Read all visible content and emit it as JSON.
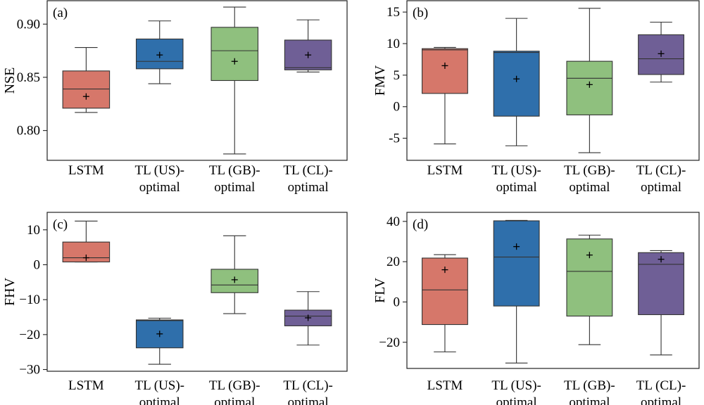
{
  "colors": {
    "LSTM": "#d6776a",
    "TL (US)-optimal": "#2f6fab",
    "TL (GB)-optimal": "#8fc07e",
    "TL (CL)-optimal": "#6f5f96"
  },
  "chart_data": [
    {
      "type": "box",
      "panel_tag": "(a)",
      "ylabel": "NSE",
      "ylim": [
        0.772,
        0.922
      ],
      "yticks": [
        0.8,
        0.85,
        0.9
      ],
      "ytick_labels": [
        "0.80",
        "0.85",
        "0.90"
      ],
      "categories": [
        [
          "LSTM"
        ],
        [
          "TL (US)-",
          "optimal"
        ],
        [
          "TL (GB)-",
          "optimal"
        ],
        [
          "TL (CL)-",
          "optimal"
        ]
      ],
      "series_keys": [
        "LSTM",
        "TL (US)-optimal",
        "TL (GB)-optimal",
        "TL (CL)-optimal"
      ],
      "boxes": [
        {
          "min": 0.817,
          "q1": 0.821,
          "median": 0.839,
          "q3": 0.856,
          "max": 0.878,
          "mean": 0.832
        },
        {
          "min": 0.844,
          "q1": 0.858,
          "median": 0.865,
          "q3": 0.886,
          "max": 0.903,
          "mean": 0.871
        },
        {
          "min": 0.778,
          "q1": 0.847,
          "median": 0.875,
          "q3": 0.897,
          "max": 0.916,
          "mean": 0.865
        },
        {
          "min": 0.855,
          "q1": 0.857,
          "median": 0.859,
          "q3": 0.885,
          "max": 0.904,
          "mean": 0.871
        }
      ]
    },
    {
      "type": "box",
      "panel_tag": "(b)",
      "ylabel": "FMV",
      "ylim": [
        -8.5,
        16.8
      ],
      "yticks": [
        -5,
        0,
        5,
        10,
        15
      ],
      "ytick_labels": [
        "-5",
        "0",
        "5",
        "10",
        "15"
      ],
      "categories": [
        [
          "LSTM"
        ],
        [
          "TL (US)-",
          "optimal"
        ],
        [
          "TL (GB)-",
          "optimal"
        ],
        [
          "TL (CL)-",
          "optimal"
        ]
      ],
      "series_keys": [
        "LSTM",
        "TL (US)-optimal",
        "TL (GB)-optimal",
        "TL (CL)-optimal"
      ],
      "boxes": [
        {
          "min": -5.9,
          "q1": 2.1,
          "median": 9.0,
          "q3": 9.2,
          "max": 9.4,
          "mean": 6.5
        },
        {
          "min": -6.2,
          "q1": -1.5,
          "median": 8.6,
          "q3": 8.8,
          "max": 14.0,
          "mean": 4.4
        },
        {
          "min": -7.3,
          "q1": -1.3,
          "median": 4.5,
          "q3": 7.2,
          "max": 15.6,
          "mean": 3.5
        },
        {
          "min": 3.9,
          "q1": 5.1,
          "median": 7.6,
          "q3": 11.4,
          "max": 13.4,
          "mean": 8.4
        }
      ]
    },
    {
      "type": "box",
      "panel_tag": "(c)",
      "ylabel": "FHV",
      "ylim": [
        -30.5,
        15.0
      ],
      "yticks": [
        -30,
        -20,
        -10,
        0,
        10
      ],
      "ytick_labels": [
        "−30",
        "−20",
        "−10",
        "0",
        "10"
      ],
      "categories": [
        [
          "LSTM"
        ],
        [
          "TL (US)-",
          "optimal"
        ],
        [
          "TL (GB)-",
          "optimal"
        ],
        [
          "TL (CL)-",
          "optimal"
        ]
      ],
      "series_keys": [
        "LSTM",
        "TL (US)-optimal",
        "TL (GB)-optimal",
        "TL (CL)-optimal"
      ],
      "boxes": [
        {
          "min": 0.8,
          "q1": 0.8,
          "median": 2.0,
          "q3": 6.5,
          "max": 12.5,
          "mean": 2.0
        },
        {
          "min": -28.5,
          "q1": -23.8,
          "median": -16.0,
          "q3": -15.8,
          "max": -15.3,
          "mean": -19.8
        },
        {
          "min": -14.0,
          "q1": -8.0,
          "median": -5.8,
          "q3": -1.3,
          "max": 8.3,
          "mean": -4.3
        },
        {
          "min": -23.0,
          "q1": -17.5,
          "median": -14.7,
          "q3": -13.0,
          "max": -7.7,
          "mean": -15.2
        }
      ]
    },
    {
      "type": "box",
      "panel_tag": "(d)",
      "ylabel": "FLV",
      "ylim": [
        -33.0,
        44.5
      ],
      "yticks": [
        -20,
        0,
        20,
        40
      ],
      "ytick_labels": [
        "−20",
        "0",
        "20",
        "40"
      ],
      "categories": [
        [
          "LSTM"
        ],
        [
          "TL (US)-",
          "optimal"
        ],
        [
          "TL (GB)-",
          "optimal"
        ],
        [
          "TL (CL)-",
          "optimal"
        ]
      ],
      "series_keys": [
        "LSTM",
        "TL (US)-optimal",
        "TL (GB)-optimal",
        "TL (CL)-optimal"
      ],
      "boxes": [
        {
          "min": -24.8,
          "q1": -11.2,
          "median": 6.0,
          "q3": 21.8,
          "max": 23.5,
          "mean": 16.0
        },
        {
          "min": -30.3,
          "q1": -2.0,
          "median": 22.3,
          "q3": 40.3,
          "max": 40.5,
          "mean": 27.5
        },
        {
          "min": -21.2,
          "q1": -7.0,
          "median": 15.2,
          "q3": 31.3,
          "max": 33.2,
          "mean": 23.3
        },
        {
          "min": -26.3,
          "q1": -6.3,
          "median": 18.7,
          "q3": 24.5,
          "max": 25.5,
          "mean": 21.2
        }
      ]
    }
  ]
}
